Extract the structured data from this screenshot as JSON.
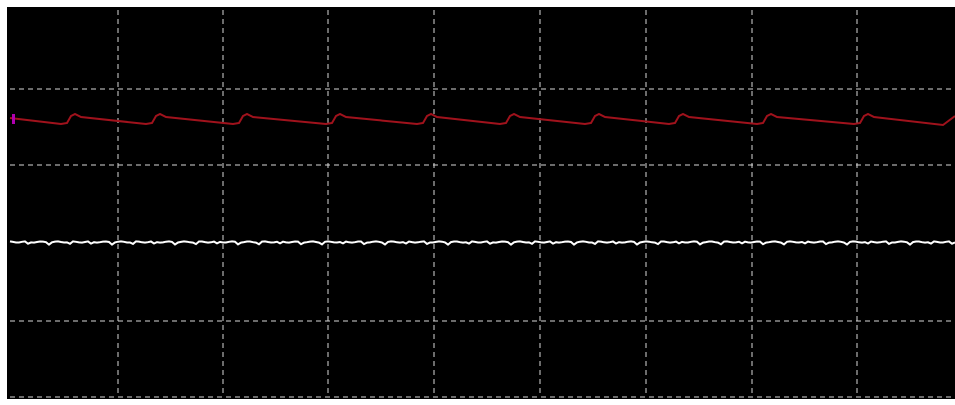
{
  "chart_data": {
    "type": "line",
    "title": "",
    "xlabel": "",
    "ylabel": "",
    "grid": true,
    "xlim": [
      0,
      9
    ],
    "ylim": [
      -3,
      2
    ],
    "background_color": "#000000",
    "grid_color": "#d8d8d8",
    "series": [
      {
        "color": "#a0121c",
        "style": "sawtooth-ripple",
        "baseline": 1.35,
        "peak": 1.46,
        "trough": 1.32,
        "cycles": 11,
        "marker_color": "#b000b0"
      },
      {
        "color": "#ffffff",
        "style": "flat-noise",
        "level": 0.0,
        "noise": 0.02
      }
    ]
  }
}
